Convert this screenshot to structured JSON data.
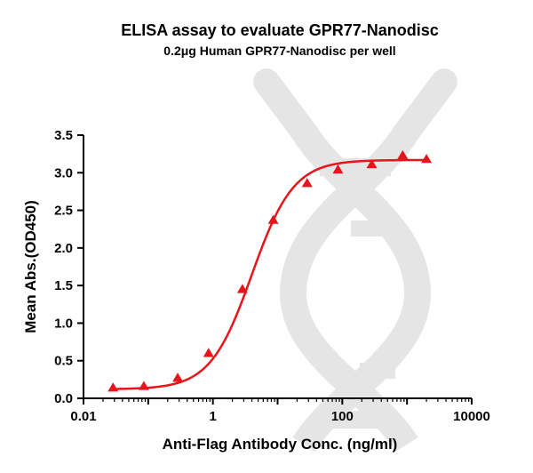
{
  "chart_data": {
    "type": "scatter",
    "title": "ELISA assay to evaluate GPR77-Nanodisc",
    "subtitle": "0.2μg Human GPR77-Nanodisc per well",
    "xlabel": "Anti-Flag Antibody Conc. (ng/ml)",
    "ylabel": "Mean Abs.(OD450)",
    "x_scale": "log",
    "xlim": [
      0.01,
      10000
    ],
    "ylim": [
      0.0,
      3.5
    ],
    "x_ticks": [
      "0.01",
      "1",
      "100",
      "10000"
    ],
    "y_ticks": [
      "0.0",
      "0.5",
      "1.0",
      "1.5",
      "2.0",
      "2.5",
      "3.0",
      "3.5"
    ],
    "grid": false,
    "legend": "none",
    "series": [
      {
        "marker": "triangle",
        "color": "#e8141b",
        "x": [
          0.0286,
          0.0857,
          0.286,
          0.857,
          2.86,
          8.57,
          28.6,
          85.7,
          286,
          857,
          2000
        ],
        "y": [
          0.14,
          0.16,
          0.27,
          0.6,
          1.45,
          2.37,
          2.86,
          3.04,
          3.11,
          3.23,
          3.18
        ]
      }
    ],
    "fit_curve": {
      "color": "#e8141b",
      "model": "4PL",
      "bottom": 0.12,
      "top": 3.17,
      "ec50": 4.0,
      "hill": 1.35
    }
  }
}
